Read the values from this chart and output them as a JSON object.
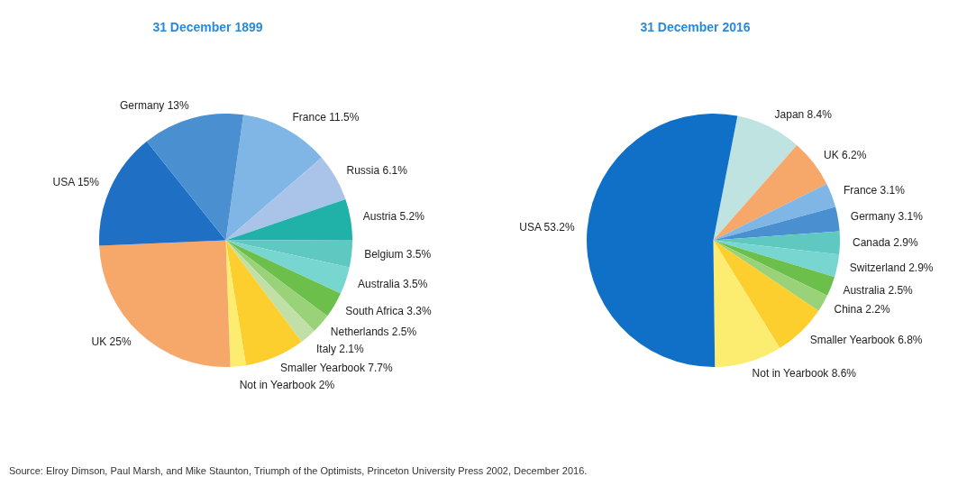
{
  "chart_data": [
    {
      "type": "pie",
      "title": "31 December 1899",
      "categories": [
        "France",
        "Russia",
        "Austria",
        "Belgium",
        "Australia",
        "South Africa",
        "Netherlands",
        "Italy",
        "Smaller Yearbook",
        "Not in Yearbook",
        "UK",
        "USA",
        "Germany"
      ],
      "values": [
        11.5,
        6.1,
        5.2,
        3.5,
        3.5,
        3.3,
        2.5,
        2.1,
        7.7,
        2,
        25,
        15,
        13
      ],
      "value_labels": [
        "11.5%",
        "6.1%",
        "5.2%",
        "3.5%",
        "3.5%",
        "3.3%",
        "2.5%",
        "2.1%",
        "7.7%",
        "2%",
        "25%",
        "15%",
        "13%"
      ],
      "colors": [
        "#7fb6e6",
        "#a9c4e8",
        "#20b2a8",
        "#5fc8c0",
        "#78d6d0",
        "#6cbf4a",
        "#9ad27a",
        "#c0e0a8",
        "#fccf2e",
        "#fcec70",
        "#f5a86a",
        "#1f6fc5",
        "#4a90d0"
      ],
      "legend": false
    },
    {
      "type": "pie",
      "title": "31 December 2016",
      "categories": [
        "Japan",
        "UK",
        "France",
        "Germany",
        "Canada",
        "Switzerland",
        "Australia",
        "China",
        "Smaller Yearbook",
        "Not in Yearbook",
        "USA"
      ],
      "values": [
        8.4,
        6.2,
        3.1,
        3.1,
        2.9,
        2.9,
        2.5,
        2.2,
        6.8,
        8.6,
        53.2
      ],
      "value_labels": [
        "8.4%",
        "6.2%",
        "3.1%",
        "3.1%",
        "2.9%",
        "2.9%",
        "2.5%",
        "2.2%",
        "6.8%",
        "8.6%",
        "53.2%"
      ],
      "colors": [
        "#bfe3e0",
        "#f5a86a",
        "#7fb6e6",
        "#4a90d0",
        "#5fc8c0",
        "#78d6d0",
        "#6cbf4a",
        "#9ad27a",
        "#fccf2e",
        "#fcec70",
        "#1070c8"
      ],
      "legend": false,
      "annotations": [
        "Source: Elroy Dimson, Paul Marsh, and Mike Staunton, Triumph of the Optimists, Princeton University Press 2002, December 2016."
      ]
    }
  ]
}
